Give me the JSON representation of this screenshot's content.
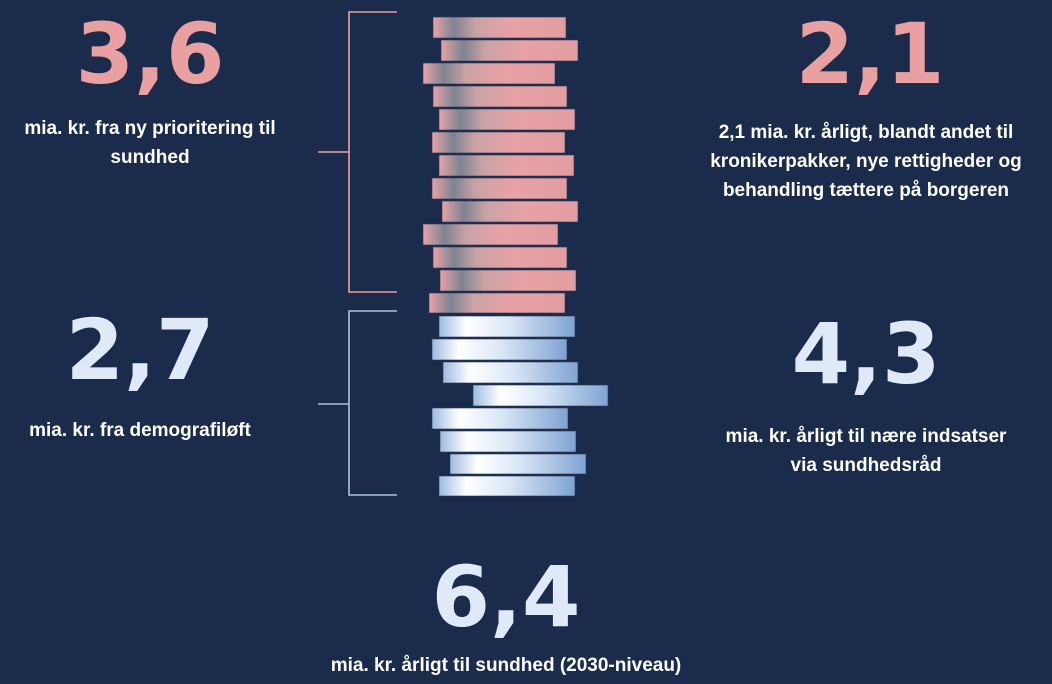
{
  "left_top": {
    "value": "3,6",
    "text": "mia. kr. fra ny prioritering til sundhed"
  },
  "right_top": {
    "value": "2,1",
    "text": "2,1 mia. kr. årligt, blandt andet til kronikerpakker, nye rettigheder og behandling tættere på borgeren"
  },
  "left_bottom": {
    "value": "2,7",
    "text": "mia. kr. fra demografiløft"
  },
  "right_bottom": {
    "value": "4,3",
    "text": "mia. kr. årligt til nære indsatser via sundhedsråd"
  },
  "total": {
    "value": "6,4",
    "text": "mia. kr. årligt til sundhed (2030-niveau)"
  },
  "colors": {
    "background": "#1b2b4b",
    "pink": "#e9a0a0",
    "light_blue": "#dfe9f7",
    "bracket_top": "#e9a0a0",
    "bracket_bottom": "#a9c2e4"
  }
}
